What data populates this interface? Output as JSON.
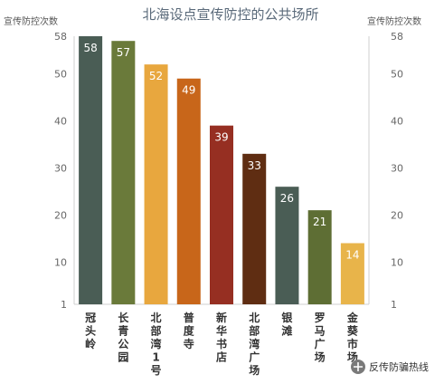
{
  "chart_data": {
    "type": "bar",
    "title": "北海设点宣传防控的公共场所",
    "ylabel_left": "宣传防控次数",
    "ylabel_right": "宣传防控次数",
    "ylim": [
      1,
      58
    ],
    "yticks": [
      1,
      10,
      20,
      30,
      40,
      50,
      58
    ],
    "categories": [
      "冠头岭",
      "长青公园",
      "北部湾1号",
      "普度寺",
      "新华书店",
      "北部湾广场",
      "银滩",
      "罗马广场",
      "金葵市场"
    ],
    "category_lines": [
      [
        "冠",
        "头",
        "岭"
      ],
      [
        "长",
        "青",
        "公",
        "园"
      ],
      [
        "北",
        "部",
        "湾",
        "1",
        "号"
      ],
      [
        "普",
        "度",
        "寺"
      ],
      [
        "新",
        "华",
        "书",
        "店"
      ],
      [
        "北",
        "部",
        "湾",
        "广",
        "场"
      ],
      [
        "银",
        "滩"
      ],
      [
        "罗",
        "马",
        "广",
        "场"
      ],
      [
        "金",
        "葵",
        "市",
        "场"
      ]
    ],
    "values": [
      58,
      57,
      52,
      49,
      39,
      33,
      26,
      21,
      14
    ],
    "colors": [
      "#4a5d55",
      "#6a7a3a",
      "#e8a73e",
      "#c8661a",
      "#962f22",
      "#5f2d12",
      "#4a5d55",
      "#5e6e34",
      "#e8b44a"
    ],
    "grid": false
  },
  "watermark": {
    "text": "反传防骗热线"
  }
}
